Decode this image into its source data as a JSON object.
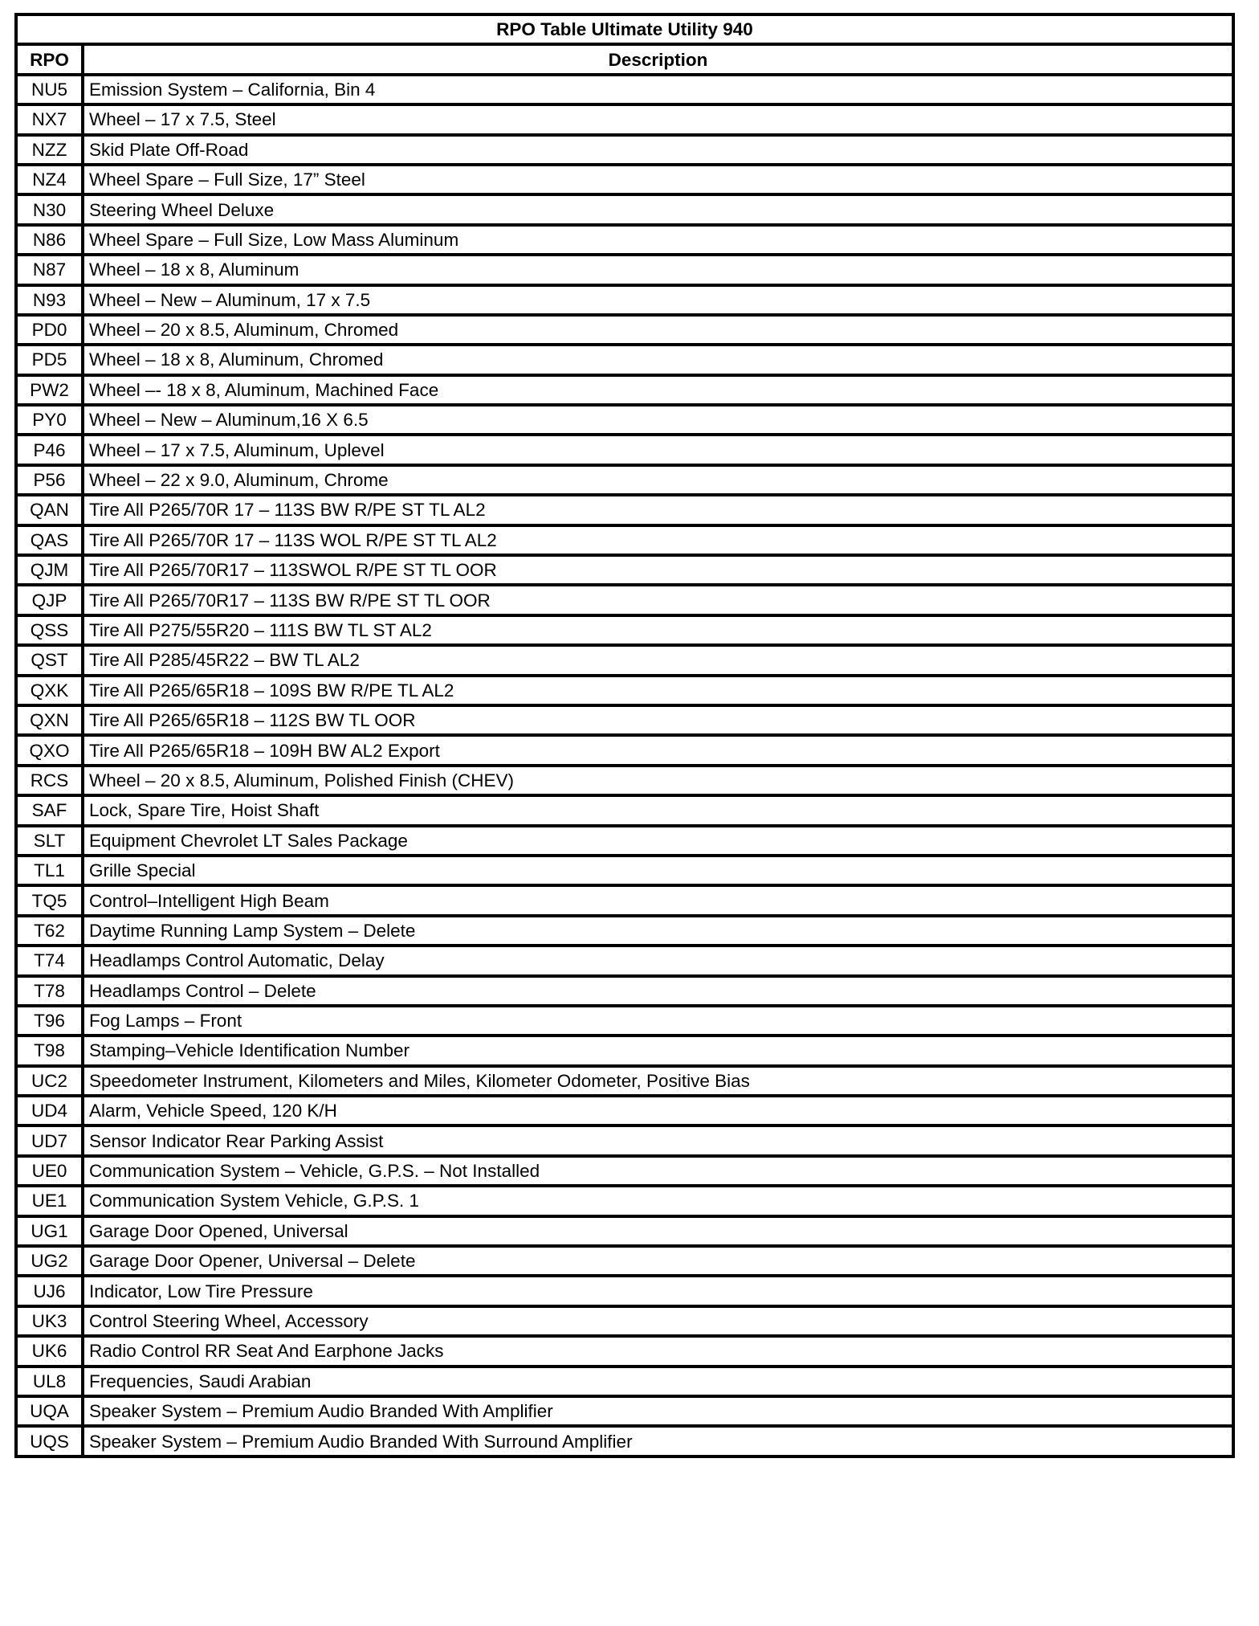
{
  "title": "RPO Table Ultimate Utility 940",
  "columns": [
    "RPO",
    "Description"
  ],
  "rows": [
    [
      "NU5",
      "Emission System – California, Bin 4"
    ],
    [
      "NX7",
      "Wheel – 17 x 7.5, Steel"
    ],
    [
      "NZZ",
      "Skid Plate Off-Road"
    ],
    [
      "NZ4",
      "Wheel Spare – Full Size, 17” Steel"
    ],
    [
      "N30",
      "Steering Wheel Deluxe"
    ],
    [
      "N86",
      "Wheel Spare – Full Size, Low Mass Aluminum"
    ],
    [
      "N87",
      "Wheel – 18 x 8, Aluminum"
    ],
    [
      "N93",
      "Wheel – New – Aluminum, 17 x 7.5"
    ],
    [
      "PD0",
      "Wheel – 20 x 8.5, Aluminum, Chromed"
    ],
    [
      "PD5",
      "Wheel – 18 x 8, Aluminum, Chromed"
    ],
    [
      "PW2",
      "Wheel –- 18 x 8, Aluminum, Machined Face"
    ],
    [
      "PY0",
      "Wheel – New – Aluminum,16 X 6.5"
    ],
    [
      "P46",
      "Wheel – 17 x 7.5, Aluminum, Uplevel"
    ],
    [
      "P56",
      "Wheel – 22 x 9.0, Aluminum, Chrome"
    ],
    [
      "QAN",
      "Tire All P265/70R 17 – 113S BW R/PE ST TL AL2"
    ],
    [
      "QAS",
      "Tire All P265/70R 17 – 113S WOL R/PE ST TL AL2"
    ],
    [
      "QJM",
      "Tire All P265/70R17 – 113SWOL R/PE ST TL OOR"
    ],
    [
      "QJP",
      "Tire All P265/70R17 – 113S BW R/PE ST TL OOR"
    ],
    [
      "QSS",
      "Tire All P275/55R20 – 111S BW TL ST AL2"
    ],
    [
      "QST",
      "Tire All P285/45R22 – BW TL AL2"
    ],
    [
      "QXK",
      "Tire All P265/65R18 – 109S BW R/PE TL AL2"
    ],
    [
      "QXN",
      "Tire All P265/65R18 – 112S BW TL OOR"
    ],
    [
      "QXO",
      "Tire All P265/65R18 – 109H BW AL2 Export"
    ],
    [
      "RCS",
      "Wheel – 20 x 8.5, Aluminum, Polished Finish (CHEV)"
    ],
    [
      "SAF",
      "Lock, Spare Tire, Hoist Shaft"
    ],
    [
      "SLT",
      "Equipment Chevrolet LT Sales Package"
    ],
    [
      "TL1",
      "Grille Special"
    ],
    [
      "TQ5",
      "Control–Intelligent High Beam"
    ],
    [
      "T62",
      "Daytime Running Lamp System – Delete"
    ],
    [
      "T74",
      "Headlamps Control Automatic, Delay"
    ],
    [
      "T78",
      "Headlamps Control – Delete"
    ],
    [
      "T96",
      "Fog Lamps – Front"
    ],
    [
      "T98",
      "Stamping–Vehicle Identification Number"
    ],
    [
      "UC2",
      "Speedometer Instrument, Kilometers and Miles, Kilometer Odometer, Positive Bias"
    ],
    [
      "UD4",
      "Alarm, Vehicle Speed, 120 K/H"
    ],
    [
      "UD7",
      "Sensor Indicator Rear Parking Assist"
    ],
    [
      "UE0",
      "Communication System – Vehicle, G.P.S. – Not Installed"
    ],
    [
      "UE1",
      "Communication System Vehicle, G.P.S. 1"
    ],
    [
      "UG1",
      "Garage Door Opened, Universal"
    ],
    [
      "UG2",
      "Garage Door Opener, Universal – Delete"
    ],
    [
      "UJ6",
      "Indicator, Low Tire Pressure"
    ],
    [
      "UK3",
      "Control Steering Wheel, Accessory"
    ],
    [
      "UK6",
      "Radio Control RR Seat And Earphone Jacks"
    ],
    [
      "UL8",
      "Frequencies, Saudi Arabian"
    ],
    [
      "UQA",
      "Speaker System – Premium Audio Branded With Amplifier"
    ],
    [
      "UQS",
      "Speaker System – Premium Audio Branded With Surround Amplifier"
    ]
  ]
}
